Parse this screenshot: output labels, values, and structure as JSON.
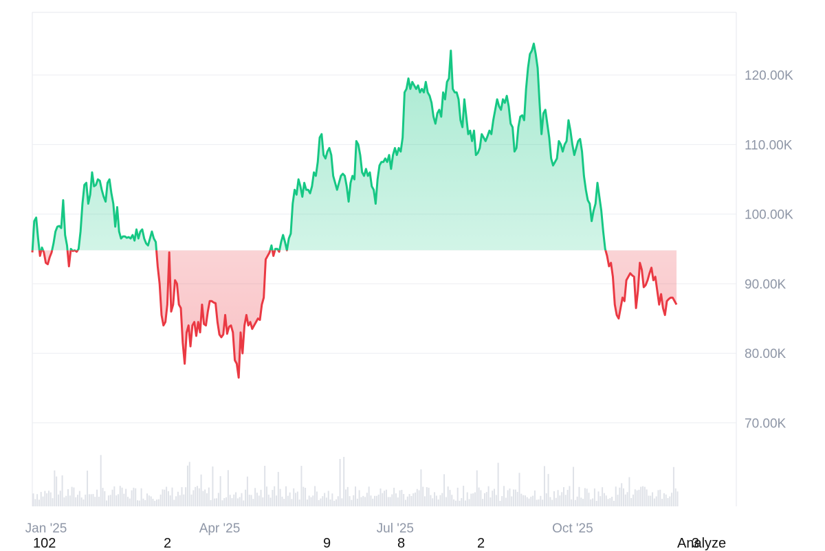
{
  "colors": {
    "up": "#16c784",
    "down": "#ea3943",
    "grid": "#eceef2",
    "volume": "#dfe2e8",
    "axis_text": "#8e96a6"
  },
  "chart_data": {
    "type": "area",
    "baseline": 94800,
    "ylim": [
      58000,
      129000
    ],
    "y_ticks": [
      {
        "value": 70000,
        "label": "70.00K"
      },
      {
        "value": 80000,
        "label": "80.00K"
      },
      {
        "value": 90000,
        "label": "90.00K"
      },
      {
        "value": 100000,
        "label": "100.00K"
      },
      {
        "value": 110000,
        "label": "110.00K"
      },
      {
        "value": 120000,
        "label": "120.00K"
      }
    ],
    "x_range": [
      0,
      365
    ],
    "x_ticks": [
      {
        "day": 0,
        "label": "Jan '25"
      },
      {
        "day": 90,
        "label": "Apr '25"
      },
      {
        "day": 181,
        "label": "Jul '25"
      },
      {
        "day": 273,
        "label": "Oct '25"
      }
    ],
    "points": [
      [
        0,
        94500
      ],
      [
        1,
        99000
      ],
      [
        2,
        99500
      ],
      [
        3,
        96500
      ],
      [
        4,
        94000
      ],
      [
        5,
        95200
      ],
      [
        6,
        94500
      ],
      [
        7,
        93000
      ],
      [
        8,
        92800
      ],
      [
        9,
        93800
      ],
      [
        10,
        94500
      ],
      [
        11,
        95800
      ],
      [
        12,
        97500
      ],
      [
        13,
        98200
      ],
      [
        14,
        98300
      ],
      [
        15,
        98000
      ],
      [
        16,
        102000
      ],
      [
        17,
        97000
      ],
      [
        18,
        95500
      ],
      [
        19,
        92500
      ],
      [
        20,
        95000
      ],
      [
        21,
        94700
      ],
      [
        22,
        94800
      ],
      [
        23,
        94600
      ],
      [
        24,
        95000
      ],
      [
        25,
        97500
      ],
      [
        26,
        101500
      ],
      [
        27,
        104200
      ],
      [
        28,
        104500
      ],
      [
        29,
        101500
      ],
      [
        30,
        102800
      ],
      [
        31,
        106000
      ],
      [
        32,
        104000
      ],
      [
        33,
        104200
      ],
      [
        34,
        105000
      ],
      [
        35,
        104800
      ],
      [
        36,
        103500
      ],
      [
        37,
        102500
      ],
      [
        38,
        101800
      ],
      [
        39,
        104500
      ],
      [
        40,
        105000
      ],
      [
        41,
        103000
      ],
      [
        42,
        101500
      ],
      [
        43,
        98200
      ],
      [
        44,
        101000
      ],
      [
        45,
        97500
      ],
      [
        46,
        96500
      ],
      [
        47,
        96800
      ],
      [
        48,
        96800
      ],
      [
        49,
        96600
      ],
      [
        50,
        96700
      ],
      [
        51,
        96500
      ],
      [
        52,
        97000
      ],
      [
        53,
        96200
      ],
      [
        54,
        97800
      ],
      [
        55,
        96500
      ],
      [
        56,
        97500
      ],
      [
        57,
        97800
      ],
      [
        58,
        96500
      ],
      [
        59,
        95800
      ],
      [
        60,
        95500
      ],
      [
        61,
        96500
      ],
      [
        62,
        97500
      ],
      [
        63,
        96500
      ],
      [
        64,
        96000
      ],
      [
        65,
        92500
      ],
      [
        66,
        90000
      ],
      [
        67,
        85500
      ],
      [
        68,
        84000
      ],
      [
        69,
        84500
      ],
      [
        70,
        87000
      ],
      [
        71,
        94500
      ],
      [
        72,
        86000
      ],
      [
        73,
        87000
      ],
      [
        74,
        90500
      ],
      [
        75,
        90000
      ],
      [
        76,
        87000
      ],
      [
        77,
        86500
      ],
      [
        78,
        81500
      ],
      [
        79,
        78500
      ],
      [
        80,
        83000
      ],
      [
        81,
        84000
      ],
      [
        82,
        81000
      ],
      [
        83,
        84000
      ],
      [
        84,
        84500
      ],
      [
        85,
        82500
      ],
      [
        86,
        84500
      ],
      [
        87,
        83000
      ],
      [
        88,
        87000
      ],
      [
        89,
        84200
      ],
      [
        90,
        84000
      ],
      [
        91,
        86000
      ],
      [
        92,
        87500
      ],
      [
        93,
        87500
      ],
      [
        94,
        87300
      ],
      [
        95,
        87200
      ],
      [
        96,
        84500
      ],
      [
        97,
        82700
      ],
      [
        98,
        82300
      ],
      [
        99,
        82700
      ],
      [
        100,
        85500
      ],
      [
        101,
        82800
      ],
      [
        102,
        83800
      ],
      [
        103,
        84000
      ],
      [
        104,
        83000
      ],
      [
        105,
        79000
      ],
      [
        106,
        78500
      ],
      [
        107,
        76500
      ],
      [
        108,
        83000
      ],
      [
        109,
        80000
      ],
      [
        110,
        84000
      ],
      [
        111,
        85500
      ],
      [
        112,
        84000
      ],
      [
        113,
        84500
      ],
      [
        114,
        83500
      ],
      [
        115,
        84000
      ],
      [
        116,
        84500
      ],
      [
        117,
        85000
      ],
      [
        118,
        84800
      ],
      [
        119,
        87000
      ],
      [
        120,
        88000
      ],
      [
        121,
        93500
      ],
      [
        122,
        94000
      ],
      [
        123,
        94500
      ],
      [
        124,
        95500
      ],
      [
        125,
        94000
      ],
      [
        126,
        95000
      ],
      [
        127,
        95000
      ],
      [
        128,
        94600
      ],
      [
        129,
        96000
      ],
      [
        130,
        97000
      ],
      [
        131,
        96000
      ],
      [
        132,
        94800
      ],
      [
        133,
        96500
      ],
      [
        134,
        97200
      ],
      [
        135,
        101500
      ],
      [
        136,
        103500
      ],
      [
        137,
        102800
      ],
      [
        138,
        105000
      ],
      [
        139,
        104000
      ],
      [
        140,
        102500
      ],
      [
        141,
        104500
      ],
      [
        142,
        103500
      ],
      [
        143,
        103500
      ],
      [
        144,
        103000
      ],
      [
        145,
        104000
      ],
      [
        146,
        106000
      ],
      [
        147,
        105500
      ],
      [
        148,
        107500
      ],
      [
        149,
        111000
      ],
      [
        150,
        111500
      ],
      [
        151,
        108500
      ],
      [
        152,
        108000
      ],
      [
        153,
        109000
      ],
      [
        154,
        109500
      ],
      [
        155,
        108500
      ],
      [
        156,
        105500
      ],
      [
        157,
        104500
      ],
      [
        158,
        103500
      ],
      [
        159,
        104500
      ],
      [
        160,
        105500
      ],
      [
        161,
        105800
      ],
      [
        162,
        105500
      ],
      [
        163,
        104000
      ],
      [
        164,
        101800
      ],
      [
        165,
        104500
      ],
      [
        166,
        105500
      ],
      [
        167,
        105000
      ],
      [
        168,
        110500
      ],
      [
        169,
        110000
      ],
      [
        170,
        108500
      ],
      [
        171,
        106000
      ],
      [
        172,
        105500
      ],
      [
        173,
        106500
      ],
      [
        174,
        105500
      ],
      [
        175,
        106000
      ],
      [
        176,
        104000
      ],
      [
        177,
        103500
      ],
      [
        178,
        101500
      ],
      [
        179,
        105000
      ],
      [
        180,
        107000
      ],
      [
        181,
        107500
      ],
      [
        182,
        107500
      ],
      [
        183,
        108000
      ],
      [
        184,
        107500
      ],
      [
        185,
        108500
      ],
      [
        186,
        106500
      ],
      [
        187,
        108500
      ],
      [
        188,
        109500
      ],
      [
        189,
        108500
      ],
      [
        190,
        109500
      ],
      [
        191,
        109000
      ],
      [
        192,
        111000
      ],
      [
        193,
        117500
      ],
      [
        194,
        118000
      ],
      [
        195,
        119500
      ],
      [
        196,
        118000
      ],
      [
        197,
        119000
      ],
      [
        198,
        118500
      ],
      [
        199,
        118000
      ],
      [
        200,
        118500
      ],
      [
        201,
        117500
      ],
      [
        202,
        118000
      ],
      [
        203,
        117500
      ],
      [
        204,
        119000
      ],
      [
        205,
        117500
      ],
      [
        206,
        117000
      ],
      [
        207,
        116000
      ],
      [
        208,
        114000
      ],
      [
        209,
        113000
      ],
      [
        210,
        114500
      ],
      [
        211,
        115000
      ],
      [
        212,
        114000
      ],
      [
        213,
        117500
      ],
      [
        214,
        116500
      ],
      [
        215,
        119000
      ],
      [
        216,
        119500
      ],
      [
        217,
        123500
      ],
      [
        218,
        118000
      ],
      [
        219,
        117500
      ],
      [
        220,
        117500
      ],
      [
        221,
        116500
      ],
      [
        222,
        113500
      ],
      [
        223,
        112500
      ],
      [
        224,
        116500
      ],
      [
        225,
        114000
      ],
      [
        226,
        111500
      ],
      [
        227,
        112000
      ],
      [
        228,
        110500
      ],
      [
        229,
        112000
      ],
      [
        230,
        108500
      ],
      [
        231,
        108800
      ],
      [
        232,
        109500
      ],
      [
        233,
        111500
      ],
      [
        234,
        111000
      ],
      [
        235,
        110500
      ],
      [
        236,
        111200
      ],
      [
        237,
        112000
      ],
      [
        238,
        111500
      ],
      [
        239,
        113500
      ],
      [
        240,
        115000
      ],
      [
        241,
        116500
      ],
      [
        242,
        115500
      ],
      [
        243,
        115000
      ],
      [
        244,
        116500
      ],
      [
        245,
        116000
      ],
      [
        246,
        117000
      ],
      [
        247,
        115500
      ],
      [
        248,
        113000
      ],
      [
        249,
        112500
      ],
      [
        250,
        109000
      ],
      [
        251,
        109500
      ],
      [
        252,
        112500
      ],
      [
        253,
        114000
      ],
      [
        254,
        114200
      ],
      [
        255,
        113500
      ],
      [
        256,
        118000
      ],
      [
        257,
        121000
      ],
      [
        258,
        123000
      ],
      [
        259,
        123500
      ],
      [
        260,
        124500
      ],
      [
        261,
        123000
      ],
      [
        262,
        121000
      ],
      [
        263,
        116000
      ],
      [
        264,
        111500
      ],
      [
        265,
        114500
      ],
      [
        266,
        115000
      ],
      [
        267,
        113000
      ],
      [
        268,
        111000
      ],
      [
        269,
        108000
      ],
      [
        270,
        107000
      ],
      [
        271,
        107500
      ],
      [
        272,
        108000
      ],
      [
        273,
        110500
      ],
      [
        274,
        110000
      ],
      [
        275,
        109000
      ],
      [
        276,
        110000
      ],
      [
        277,
        110500
      ],
      [
        278,
        113500
      ],
      [
        279,
        112000
      ],
      [
        280,
        110000
      ],
      [
        281,
        108500
      ],
      [
        282,
        109500
      ],
      [
        283,
        110500
      ],
      [
        284,
        110800
      ],
      [
        285,
        109000
      ],
      [
        286,
        105500
      ],
      [
        287,
        103500
      ],
      [
        288,
        102000
      ],
      [
        289,
        101500
      ],
      [
        290,
        99000
      ],
      [
        291,
        100500
      ],
      [
        292,
        101500
      ],
      [
        293,
        104500
      ],
      [
        294,
        102500
      ],
      [
        295,
        100500
      ],
      [
        296,
        97500
      ],
      [
        297,
        95000
      ],
      [
        298,
        94000
      ],
      [
        299,
        92500
      ],
      [
        300,
        93000
      ],
      [
        301,
        91000
      ],
      [
        302,
        87000
      ],
      [
        303,
        85500
      ],
      [
        304,
        85000
      ],
      [
        305,
        86500
      ],
      [
        306,
        88000
      ],
      [
        307,
        87500
      ],
      [
        308,
        90500
      ],
      [
        309,
        91000
      ],
      [
        310,
        91500
      ],
      [
        311,
        91200
      ],
      [
        312,
        91000
      ],
      [
        313,
        86500
      ],
      [
        314,
        89000
      ],
      [
        315,
        93000
      ],
      [
        316,
        92000
      ],
      [
        317,
        89500
      ],
      [
        318,
        89800
      ],
      [
        319,
        90500
      ],
      [
        320,
        91500
      ],
      [
        321,
        92300
      ],
      [
        322,
        90500
      ],
      [
        323,
        91000
      ],
      [
        324,
        89000
      ],
      [
        325,
        87000
      ],
      [
        326,
        88500
      ],
      [
        327,
        86500
      ],
      [
        328,
        85500
      ],
      [
        329,
        87500
      ],
      [
        330,
        87800
      ],
      [
        331,
        88000
      ],
      [
        332,
        88000
      ],
      [
        333,
        87500
      ],
      [
        334,
        87000
      ]
    ]
  },
  "bottom_strip": [
    {
      "id": "n1",
      "text": "102"
    },
    {
      "id": "n2",
      "text": "2"
    },
    {
      "id": "n3",
      "text": "9"
    },
    {
      "id": "n4",
      "text": "8"
    },
    {
      "id": "n5",
      "text": "2"
    },
    {
      "id": "n6",
      "text": "3"
    }
  ],
  "analyze_label": "Analyze"
}
